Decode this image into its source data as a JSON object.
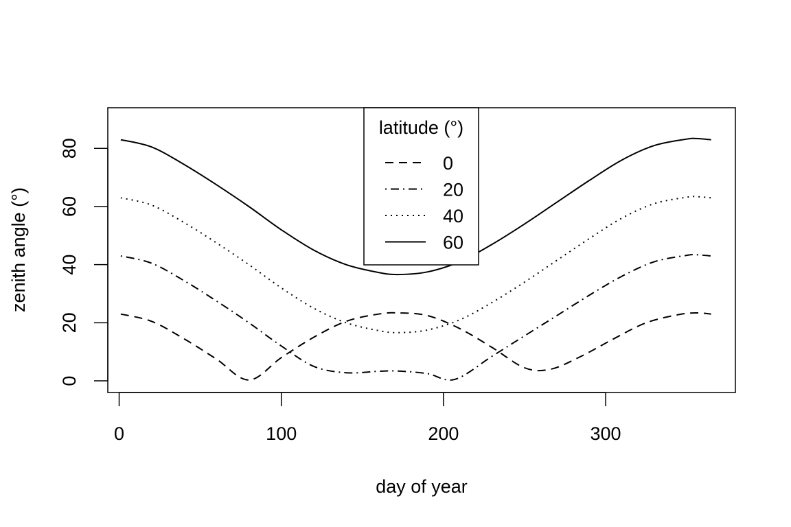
{
  "chart_data": {
    "type": "line",
    "xlabel": "day of year",
    "ylabel": "zenith angle (°)",
    "xlim": [
      -7,
      380
    ],
    "ylim": [
      -4,
      94
    ],
    "xticks": [
      0,
      100,
      200,
      300
    ],
    "yticks": [
      0,
      20,
      40,
      60,
      80
    ],
    "grid": false,
    "legend": {
      "title": "latitude (°)",
      "placement": "top-center",
      "entries": [
        "0",
        "20",
        "40",
        "60"
      ]
    },
    "series": [
      {
        "name": "0",
        "dash": "dashed",
        "x": [
          1,
          20,
          40,
          60,
          80,
          100,
          120,
          140,
          160,
          172,
          190,
          210,
          230,
          250,
          266,
          285,
          305,
          325,
          345,
          356,
          365
        ],
        "y": [
          23,
          20.5,
          14.5,
          7.5,
          0.3,
          8,
          15,
          20.5,
          23,
          23.4,
          22.5,
          18,
          11.5,
          4.5,
          4,
          8.5,
          14.5,
          20,
          22.8,
          23.4,
          23
        ]
      },
      {
        "name": "20",
        "dash": "dotdash",
        "x": [
          1,
          20,
          40,
          60,
          80,
          100,
          120,
          140,
          160,
          172,
          190,
          207,
          230,
          250,
          270,
          290,
          310,
          330,
          350,
          356,
          365
        ],
        "y": [
          43,
          40.5,
          34.5,
          27.5,
          20,
          12,
          5,
          2.8,
          3.3,
          3.4,
          2.5,
          0.5,
          8.5,
          15.5,
          22.5,
          29.5,
          36,
          41,
          43.2,
          43.4,
          43
        ]
      },
      {
        "name": "40",
        "dash": "dotted",
        "x": [
          1,
          20,
          40,
          60,
          80,
          100,
          120,
          140,
          160,
          172,
          190,
          210,
          230,
          250,
          270,
          290,
          310,
          330,
          350,
          356,
          365
        ],
        "y": [
          63,
          60.5,
          54.5,
          47.5,
          40,
          32,
          25,
          20,
          17.3,
          16.6,
          17.5,
          21,
          27,
          34,
          41.5,
          49,
          56,
          61,
          63.2,
          63.4,
          63
        ]
      },
      {
        "name": "60",
        "dash": "solid",
        "x": [
          1,
          20,
          40,
          60,
          80,
          100,
          120,
          140,
          160,
          172,
          190,
          210,
          230,
          250,
          270,
          290,
          310,
          330,
          350,
          356,
          365
        ],
        "y": [
          83,
          80.5,
          74.5,
          67.5,
          60,
          52,
          45,
          40,
          37.3,
          36.6,
          37.5,
          41,
          47,
          54,
          61.5,
          69,
          76,
          81,
          83.2,
          83.4,
          83
        ]
      }
    ]
  }
}
